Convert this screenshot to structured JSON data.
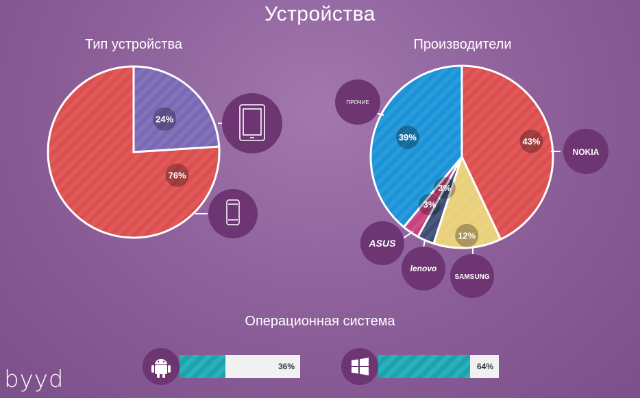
{
  "page": {
    "title": "Устройства",
    "logo": "byyd"
  },
  "chart_data": [
    {
      "type": "pie",
      "title": "Тип устройства",
      "slices": [
        {
          "label": "tablet",
          "value": 24,
          "display": "24%",
          "color": "#7a68b5"
        },
        {
          "label": "phone",
          "value": 76,
          "display": "76%",
          "color": "#dd4e4e"
        }
      ]
    },
    {
      "type": "pie",
      "title": "Производители",
      "slices": [
        {
          "label": "NOKIA",
          "value": 43,
          "display": "43%",
          "color": "#dd4e4e"
        },
        {
          "label": "SAMSUNG",
          "value": 12,
          "display": "12%",
          "color": "#ead07a"
        },
        {
          "label": "lenovo",
          "value": 3,
          "display": "3%",
          "color": "#3e4d74"
        },
        {
          "label": "ASUS",
          "value": 3,
          "display": "3%",
          "color": "#c9427f"
        },
        {
          "label": "ПРОЧИЕ",
          "value": 39,
          "display": "39%",
          "color": "#1b93d8"
        }
      ]
    },
    {
      "type": "bar",
      "title": "Операционная система",
      "categories": [
        "android",
        "windows"
      ],
      "values": [
        36,
        64
      ],
      "display": [
        "36%",
        "64%"
      ]
    }
  ],
  "icons": {
    "tablet": "tablet-icon",
    "phone": "phone-icon",
    "android": "android-icon",
    "windows": "windows-icon"
  }
}
